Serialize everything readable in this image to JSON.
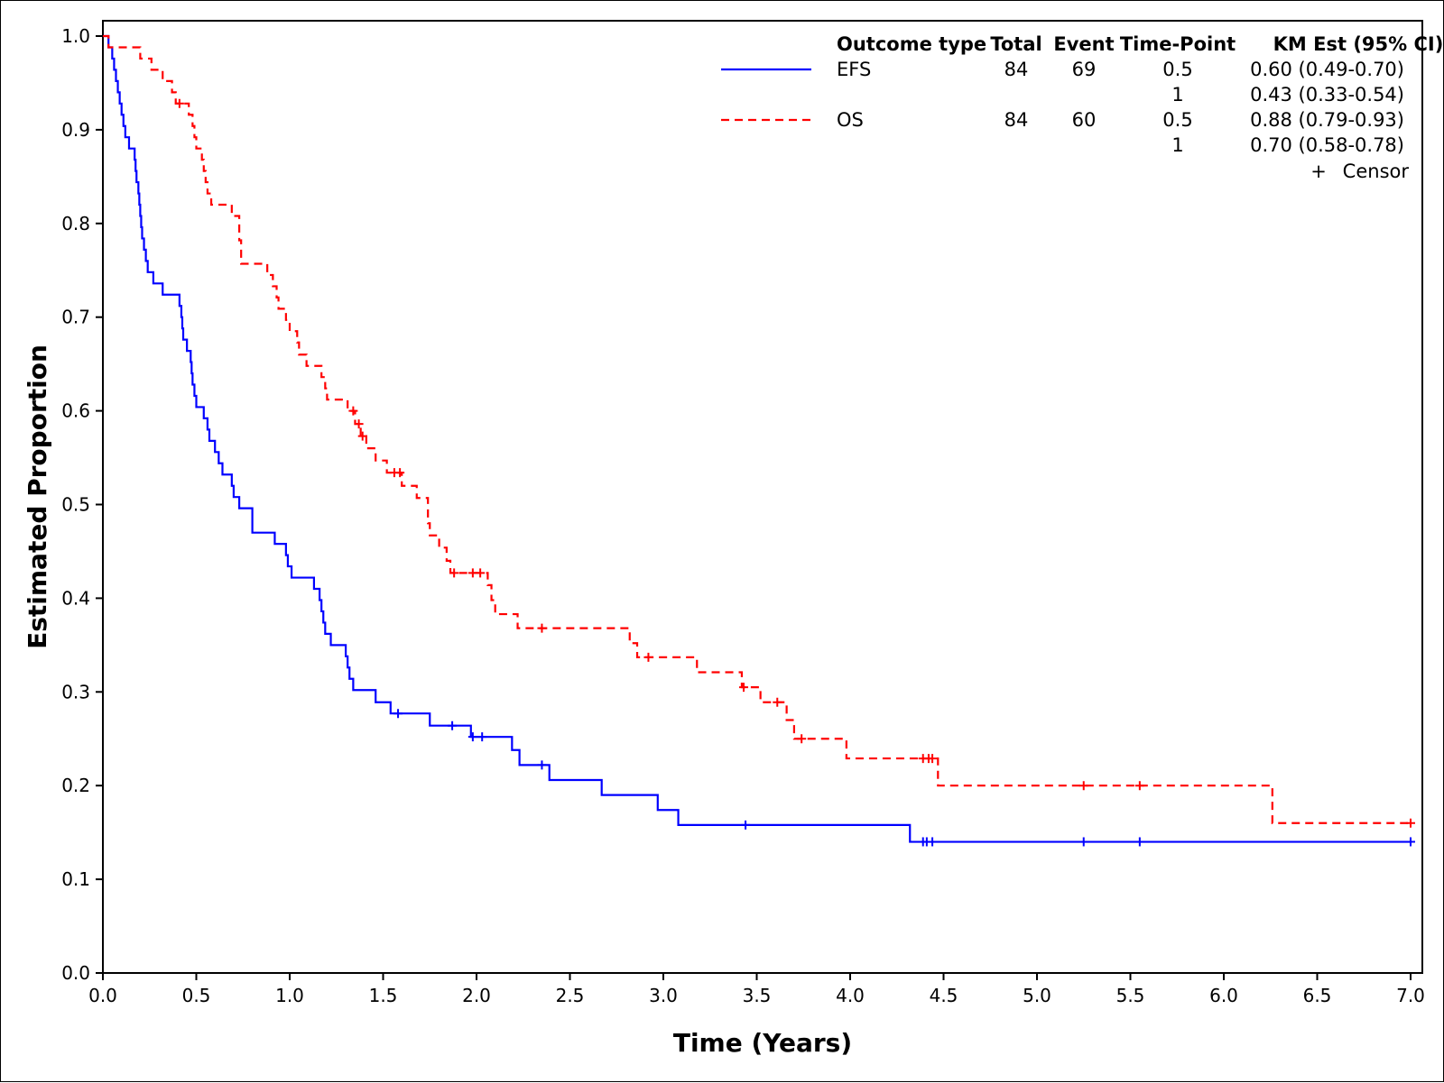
{
  "chart_data": {
    "type": "line",
    "subtype": "kaplan-meier step",
    "title": "",
    "xlabel": "Time (Years)",
    "ylabel": "Estimated Proportion",
    "xlim": [
      0,
      7
    ],
    "ylim": [
      0,
      1
    ],
    "xticks": [
      "0.0",
      "0.5",
      "1.0",
      "1.5",
      "2.0",
      "2.5",
      "3.0",
      "3.5",
      "4.0",
      "4.5",
      "5.0",
      "5.5",
      "6.0",
      "6.5",
      "7.0"
    ],
    "yticks": [
      "0.0",
      "0.1",
      "0.2",
      "0.3",
      "0.4",
      "0.5",
      "0.6",
      "0.7",
      "0.8",
      "0.9",
      "1.0"
    ],
    "grid": false,
    "legend_position": "top-right",
    "legend": {
      "headers": [
        "Outcome type",
        "Total",
        "Event",
        "Time-Point",
        "KM Est (95% CI)"
      ],
      "rows": [
        {
          "outcome": "EFS",
          "total": "84",
          "event": "69",
          "timepoint": "0.5",
          "km": "0.60 (0.49-0.70)"
        },
        {
          "outcome": "",
          "total": "",
          "event": "",
          "timepoint": "1",
          "km": "0.43 (0.33-0.54)"
        },
        {
          "outcome": "OS",
          "total": "84",
          "event": "60",
          "timepoint": "0.5",
          "km": "0.88 (0.79-0.93)"
        },
        {
          "outcome": "",
          "total": "",
          "event": "",
          "timepoint": "1",
          "km": "0.70 (0.58-0.78)"
        }
      ],
      "censor_symbol": "+",
      "censor_label": "Censor"
    },
    "series": [
      {
        "name": "EFS",
        "color": "#0000ff",
        "dash": "solid",
        "steps": [
          [
            0,
            1.0
          ],
          [
            0.03,
            0.988
          ],
          [
            0.05,
            0.976
          ],
          [
            0.06,
            0.964
          ],
          [
            0.07,
            0.952
          ],
          [
            0.08,
            0.94
          ],
          [
            0.09,
            0.928
          ],
          [
            0.1,
            0.916
          ],
          [
            0.11,
            0.904
          ],
          [
            0.12,
            0.892
          ],
          [
            0.14,
            0.88
          ],
          [
            0.17,
            0.868
          ],
          [
            0.175,
            0.856
          ],
          [
            0.18,
            0.844
          ],
          [
            0.19,
            0.832
          ],
          [
            0.195,
            0.82
          ],
          [
            0.2,
            0.808
          ],
          [
            0.205,
            0.796
          ],
          [
            0.21,
            0.784
          ],
          [
            0.22,
            0.772
          ],
          [
            0.23,
            0.76
          ],
          [
            0.24,
            0.748
          ],
          [
            0.27,
            0.736
          ],
          [
            0.32,
            0.724
          ],
          [
            0.41,
            0.712
          ],
          [
            0.42,
            0.7
          ],
          [
            0.425,
            0.688
          ],
          [
            0.43,
            0.676
          ],
          [
            0.45,
            0.664
          ],
          [
            0.47,
            0.652
          ],
          [
            0.475,
            0.64
          ],
          [
            0.48,
            0.628
          ],
          [
            0.49,
            0.616
          ],
          [
            0.5,
            0.604
          ],
          [
            0.54,
            0.592
          ],
          [
            0.56,
            0.58
          ],
          [
            0.57,
            0.568
          ],
          [
            0.6,
            0.556
          ],
          [
            0.62,
            0.544
          ],
          [
            0.64,
            0.532
          ],
          [
            0.69,
            0.52
          ],
          [
            0.7,
            0.508
          ],
          [
            0.73,
            0.496
          ],
          [
            0.8,
            0.47
          ],
          [
            0.92,
            0.458
          ],
          [
            0.98,
            0.446
          ],
          [
            0.99,
            0.434
          ],
          [
            1.01,
            0.422
          ],
          [
            1.13,
            0.41
          ],
          [
            1.16,
            0.398
          ],
          [
            1.17,
            0.386
          ],
          [
            1.18,
            0.374
          ],
          [
            1.19,
            0.362
          ],
          [
            1.22,
            0.35
          ],
          [
            1.3,
            0.338
          ],
          [
            1.31,
            0.326
          ],
          [
            1.32,
            0.314
          ],
          [
            1.34,
            0.302
          ],
          [
            1.46,
            0.289
          ],
          [
            1.54,
            0.277
          ],
          [
            1.75,
            0.264
          ],
          [
            1.97,
            0.252
          ],
          [
            2.19,
            0.238
          ],
          [
            2.23,
            0.222
          ],
          [
            2.39,
            0.206
          ],
          [
            2.67,
            0.19
          ],
          [
            2.97,
            0.174
          ],
          [
            3.08,
            0.158
          ],
          [
            4.32,
            0.14
          ],
          [
            7.0,
            0.14
          ]
        ],
        "censor_times": [
          1.58,
          1.87,
          1.98,
          2.03,
          2.35,
          3.44,
          4.39,
          4.41,
          4.44,
          5.25,
          5.55,
          7.0
        ]
      },
      {
        "name": "OS",
        "color": "#ff0000",
        "dash": "dashed",
        "steps": [
          [
            0,
            1.0
          ],
          [
            0.03,
            0.988
          ],
          [
            0.2,
            0.976
          ],
          [
            0.26,
            0.964
          ],
          [
            0.32,
            0.952
          ],
          [
            0.37,
            0.94
          ],
          [
            0.39,
            0.928
          ],
          [
            0.46,
            0.916
          ],
          [
            0.48,
            0.904
          ],
          [
            0.49,
            0.892
          ],
          [
            0.5,
            0.88
          ],
          [
            0.53,
            0.868
          ],
          [
            0.54,
            0.856
          ],
          [
            0.55,
            0.844
          ],
          [
            0.56,
            0.832
          ],
          [
            0.58,
            0.82
          ],
          [
            0.69,
            0.808
          ],
          [
            0.73,
            0.782
          ],
          [
            0.74,
            0.757
          ],
          [
            0.88,
            0.745
          ],
          [
            0.91,
            0.733
          ],
          [
            0.93,
            0.721
          ],
          [
            0.94,
            0.709
          ],
          [
            0.98,
            0.697
          ],
          [
            1.0,
            0.685
          ],
          [
            1.04,
            0.673
          ],
          [
            1.05,
            0.66
          ],
          [
            1.09,
            0.648
          ],
          [
            1.17,
            0.636
          ],
          [
            1.19,
            0.624
          ],
          [
            1.2,
            0.612
          ],
          [
            1.31,
            0.6
          ],
          [
            1.35,
            0.586
          ],
          [
            1.38,
            0.573
          ],
          [
            1.41,
            0.56
          ],
          [
            1.46,
            0.547
          ],
          [
            1.52,
            0.534
          ],
          [
            1.6,
            0.52
          ],
          [
            1.68,
            0.507
          ],
          [
            1.74,
            0.48
          ],
          [
            1.75,
            0.467
          ],
          [
            1.8,
            0.454
          ],
          [
            1.84,
            0.44
          ],
          [
            1.86,
            0.427
          ],
          [
            2.06,
            0.414
          ],
          [
            2.08,
            0.398
          ],
          [
            2.1,
            0.383
          ],
          [
            2.22,
            0.368
          ],
          [
            2.82,
            0.352
          ],
          [
            2.86,
            0.337
          ],
          [
            3.18,
            0.321
          ],
          [
            3.42,
            0.305
          ],
          [
            3.52,
            0.289
          ],
          [
            3.66,
            0.27
          ],
          [
            3.7,
            0.25
          ],
          [
            3.98,
            0.229
          ],
          [
            4.47,
            0.2
          ],
          [
            6.26,
            0.16
          ],
          [
            7.0,
            0.16
          ]
        ],
        "censor_times": [
          0.41,
          1.34,
          1.37,
          1.39,
          1.56,
          1.59,
          1.88,
          1.98,
          2.02,
          2.35,
          2.92,
          3.43,
          3.61,
          3.74,
          4.39,
          4.42,
          4.44,
          5.25,
          5.55,
          7.0
        ]
      }
    ]
  }
}
